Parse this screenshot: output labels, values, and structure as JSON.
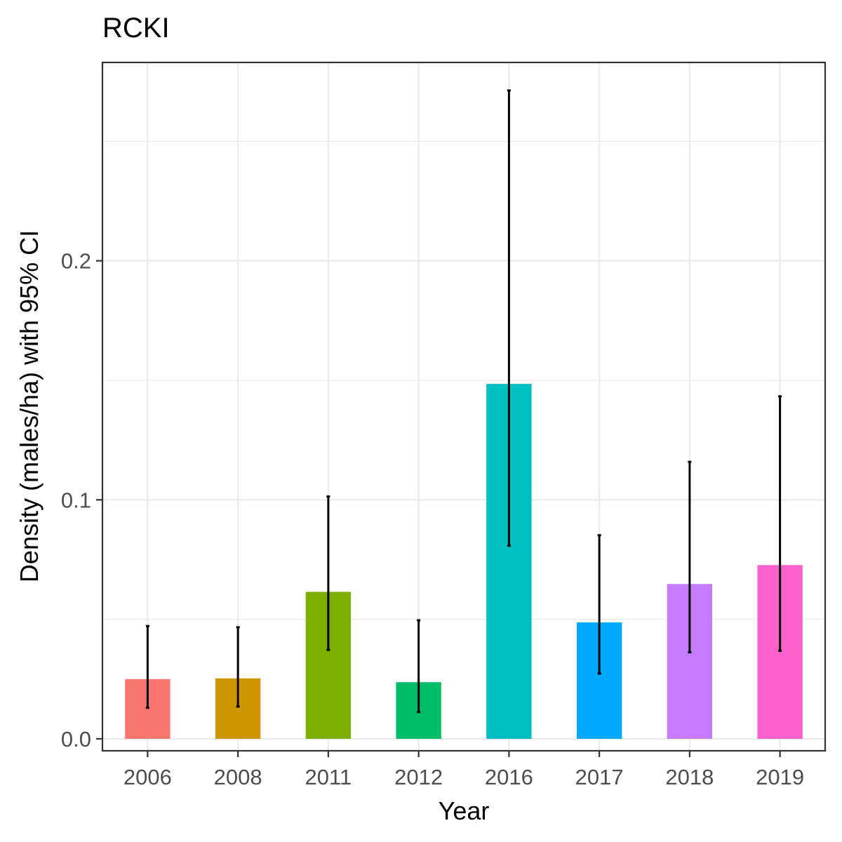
{
  "chart_data": {
    "type": "bar",
    "title": "RCKI",
    "xlabel": "Year",
    "ylabel": "Density (males/ha) with 95% CI",
    "categories": [
      "2006",
      "2008",
      "2011",
      "2012",
      "2016",
      "2017",
      "2018",
      "2019"
    ],
    "values": [
      0.025,
      0.0253,
      0.0615,
      0.0237,
      0.1485,
      0.0487,
      0.0648,
      0.0727
    ],
    "ci_lower": [
      0.013,
      0.0135,
      0.0372,
      0.0112,
      0.0808,
      0.0273,
      0.0362,
      0.0368
    ],
    "ci_upper": [
      0.0472,
      0.0467,
      0.1014,
      0.0496,
      0.2713,
      0.0852,
      0.1159,
      0.1433
    ],
    "colors": [
      "#F8766D",
      "#CD9600",
      "#7CAE00",
      "#00BE67",
      "#00BFC4",
      "#00A9FF",
      "#C77CFF",
      "#FF61CC"
    ],
    "ylim": [
      -0.005,
      0.283
    ],
    "yticks": [
      0.0,
      0.1,
      0.2
    ],
    "ytick_labels": [
      "0.0",
      "0.1",
      "0.2"
    ],
    "grid": true,
    "legend": "none"
  }
}
